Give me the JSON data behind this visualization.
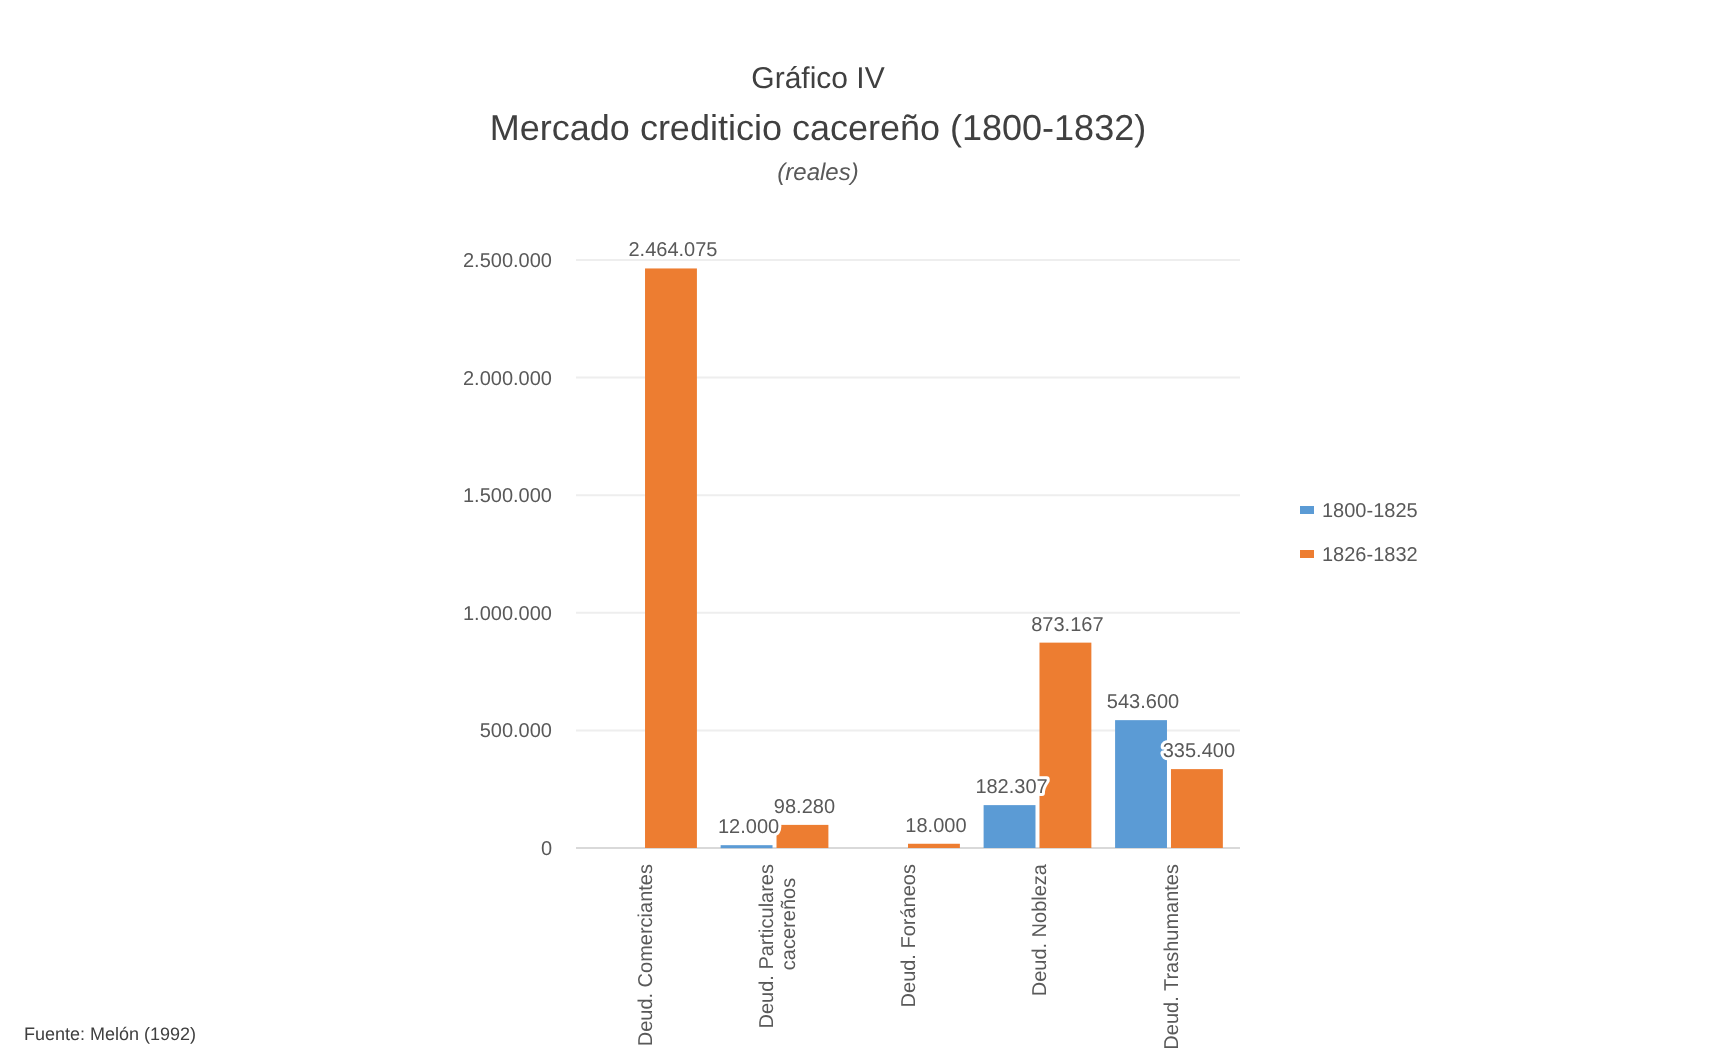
{
  "chart_data": {
    "type": "bar",
    "title": "Gráfico IV",
    "subtitle": "Mercado crediticio cacereño (1800-1832)",
    "ylabel": "(reales)",
    "categories": [
      "Deud. Comerciantes",
      "Deud. Particulares cacereños",
      "Deud. Foráneos",
      "Deud. Nobleza",
      "Deud. Trashumantes"
    ],
    "series": [
      {
        "name": "1800-1825",
        "color": "#5b9bd5",
        "values": [
          null,
          12000,
          null,
          182307,
          543600
        ],
        "value_labels": [
          null,
          "12.000",
          null,
          "182.307",
          "543.600"
        ]
      },
      {
        "name": "1826-1832",
        "color": "#ed7d31",
        "values": [
          2464075,
          98280,
          18000,
          873167,
          335400
        ],
        "value_labels": [
          "2.464.075",
          "98.280",
          "18.000",
          "873.167",
          "335.400"
        ]
      }
    ],
    "ylim": [
      0,
      2500000
    ],
    "yticks": [
      {
        "value": 0,
        "label": "0"
      },
      {
        "value": 500000,
        "label": "500.000"
      },
      {
        "value": 1000000,
        "label": "1.000.000"
      },
      {
        "value": 1500000,
        "label": "1.500.000"
      },
      {
        "value": 2000000,
        "label": "2.000.000"
      },
      {
        "value": 2500000,
        "label": "2.500.000"
      }
    ],
    "grid": "y",
    "legend": "right",
    "annotations": [
      "Fuente: Melón (1992)"
    ]
  }
}
